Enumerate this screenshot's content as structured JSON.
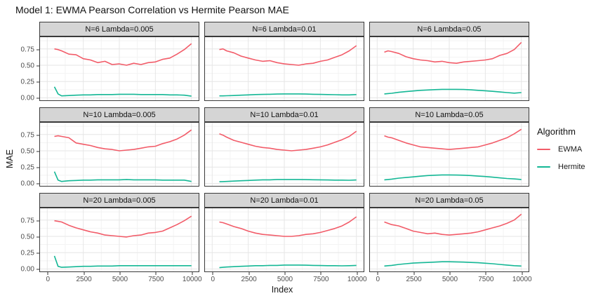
{
  "title": "Model 1: EWMA Pearson Correlation vs Hermite Pearson MAE",
  "x_axis": {
    "label": "Index",
    "ticks": [
      0,
      2500,
      5000,
      7500,
      10000
    ],
    "tick_labels": [
      "0",
      "2500",
      "5000",
      "7500",
      "10000"
    ]
  },
  "y_axis": {
    "label": "MAE",
    "ticks": [
      {
        "label": "0.75",
        "value": 0.75
      },
      {
        "label": "0.50",
        "value": 0.5
      },
      {
        "label": "0.25",
        "value": 0.25
      },
      {
        "label": "0.00",
        "value": 0.0
      }
    ]
  },
  "legend": {
    "title": "Algorithm",
    "items": [
      {
        "label": "EWMA",
        "color": "#f25c69"
      },
      {
        "label": "Hermite",
        "color": "#14b795"
      }
    ]
  },
  "style": {
    "strip_bg": "#d5d5d5",
    "panel_border": "#3a3a3a",
    "grid_major": "#e6e6e6",
    "grid_minor": "#f3f3f3"
  },
  "chart_data": {
    "type": "line",
    "title": "Model 1: EWMA Pearson Correlation vs Hermite Pearson MAE",
    "xlabel": "Index",
    "ylabel": "MAE",
    "xlim": [
      0,
      10000
    ],
    "ylim": [
      0,
      0.93
    ],
    "grid": true,
    "legend_position": "right",
    "x": [
      500,
      750,
      1000,
      1500,
      2000,
      2500,
      3000,
      3500,
      4000,
      4500,
      5000,
      5500,
      6000,
      6500,
      7000,
      7500,
      8000,
      8500,
      9000,
      9500,
      10000
    ],
    "minor_x": [
      1250,
      3750,
      6250,
      8750
    ],
    "minor_y": [
      0.125,
      0.375,
      0.625,
      0.875
    ],
    "facets": [
      {
        "label": "N=6 Lambda=0.005",
        "series": [
          {
            "name": "EWMA",
            "values": [
              0.75,
              0.74,
              0.72,
              0.67,
              0.66,
              0.6,
              0.58,
              0.54,
              0.56,
              0.51,
              0.52,
              0.5,
              0.53,
              0.51,
              0.54,
              0.55,
              0.59,
              0.61,
              0.67,
              0.74,
              0.83
            ]
          },
          {
            "name": "Hermite",
            "values": [
              0.17,
              0.06,
              0.03,
              0.035,
              0.04,
              0.045,
              0.045,
              0.05,
              0.05,
              0.05,
              0.055,
              0.055,
              0.055,
              0.05,
              0.05,
              0.05,
              0.05,
              0.045,
              0.045,
              0.04,
              0.025
            ]
          }
        ]
      },
      {
        "label": "N=6 Lambda=0.01",
        "series": [
          {
            "name": "EWMA",
            "values": [
              0.74,
              0.75,
              0.72,
              0.69,
              0.64,
              0.61,
              0.58,
              0.56,
              0.57,
              0.54,
              0.52,
              0.51,
              0.5,
              0.52,
              0.53,
              0.56,
              0.58,
              0.62,
              0.66,
              0.72,
              0.8
            ]
          },
          {
            "name": "Hermite",
            "values": [
              0.03,
              0.03,
              0.032,
              0.035,
              0.04,
              0.045,
              0.05,
              0.052,
              0.055,
              0.058,
              0.06,
              0.06,
              0.06,
              0.058,
              0.055,
              0.052,
              0.05,
              0.048,
              0.045,
              0.045,
              0.05
            ]
          }
        ]
      },
      {
        "label": "N=6 Lambda=0.05",
        "series": [
          {
            "name": "EWMA",
            "values": [
              0.7,
              0.72,
              0.71,
              0.68,
              0.63,
              0.6,
              0.58,
              0.57,
              0.55,
              0.56,
              0.54,
              0.53,
              0.55,
              0.56,
              0.57,
              0.58,
              0.6,
              0.65,
              0.68,
              0.74,
              0.85
            ]
          },
          {
            "name": "Hermite",
            "values": [
              0.06,
              0.065,
              0.07,
              0.085,
              0.095,
              0.105,
              0.115,
              0.12,
              0.125,
              0.13,
              0.13,
              0.13,
              0.128,
              0.122,
              0.115,
              0.108,
              0.1,
              0.09,
              0.08,
              0.072,
              0.08
            ]
          }
        ]
      },
      {
        "label": "N=10 Lambda=0.005",
        "series": [
          {
            "name": "EWMA",
            "values": [
              0.72,
              0.73,
              0.72,
              0.7,
              0.62,
              0.6,
              0.58,
              0.55,
              0.53,
              0.52,
              0.5,
              0.51,
              0.52,
              0.54,
              0.56,
              0.57,
              0.61,
              0.64,
              0.68,
              0.74,
              0.82
            ]
          },
          {
            "name": "Hermite",
            "values": [
              0.18,
              0.05,
              0.03,
              0.04,
              0.045,
              0.05,
              0.05,
              0.055,
              0.055,
              0.055,
              0.055,
              0.06,
              0.055,
              0.055,
              0.055,
              0.055,
              0.05,
              0.05,
              0.05,
              0.05,
              0.03
            ]
          }
        ]
      },
      {
        "label": "N=10 Lambda=0.01",
        "series": [
          {
            "name": "EWMA",
            "values": [
              0.76,
              0.74,
              0.71,
              0.66,
              0.63,
              0.6,
              0.57,
              0.55,
              0.54,
              0.52,
              0.51,
              0.5,
              0.51,
              0.52,
              0.54,
              0.56,
              0.59,
              0.63,
              0.67,
              0.72,
              0.8
            ]
          },
          {
            "name": "Hermite",
            "values": [
              0.025,
              0.028,
              0.03,
              0.035,
              0.04,
              0.045,
              0.05,
              0.055,
              0.055,
              0.06,
              0.06,
              0.06,
              0.06,
              0.058,
              0.056,
              0.054,
              0.052,
              0.05,
              0.05,
              0.048,
              0.052
            ]
          }
        ]
      },
      {
        "label": "N=10 Lambda=0.05",
        "series": [
          {
            "name": "EWMA",
            "values": [
              0.73,
              0.71,
              0.7,
              0.66,
              0.62,
              0.59,
              0.56,
              0.55,
              0.54,
              0.53,
              0.52,
              0.53,
              0.54,
              0.55,
              0.56,
              0.59,
              0.62,
              0.66,
              0.7,
              0.76,
              0.83
            ]
          },
          {
            "name": "Hermite",
            "values": [
              0.055,
              0.06,
              0.065,
              0.08,
              0.09,
              0.1,
              0.11,
              0.12,
              0.125,
              0.13,
              0.13,
              0.128,
              0.125,
              0.12,
              0.112,
              0.105,
              0.095,
              0.085,
              0.075,
              0.068,
              0.06
            ]
          }
        ]
      },
      {
        "label": "N=20 Lambda=0.005",
        "series": [
          {
            "name": "EWMA",
            "values": [
              0.74,
              0.73,
              0.72,
              0.67,
              0.63,
              0.6,
              0.57,
              0.55,
              0.52,
              0.51,
              0.5,
              0.49,
              0.51,
              0.52,
              0.55,
              0.56,
              0.58,
              0.63,
              0.68,
              0.74,
              0.81
            ]
          },
          {
            "name": "Hermite",
            "values": [
              0.2,
              0.04,
              0.025,
              0.03,
              0.035,
              0.04,
              0.04,
              0.045,
              0.045,
              0.045,
              0.05,
              0.05,
              0.05,
              0.05,
              0.05,
              0.05,
              0.05,
              0.05,
              0.05,
              0.05,
              0.05
            ]
          }
        ]
      },
      {
        "label": "N=20 Lambda=0.01",
        "series": [
          {
            "name": "EWMA",
            "values": [
              0.72,
              0.71,
              0.69,
              0.65,
              0.62,
              0.58,
              0.55,
              0.53,
              0.52,
              0.51,
              0.5,
              0.5,
              0.51,
              0.53,
              0.54,
              0.56,
              0.59,
              0.62,
              0.66,
              0.72,
              0.8
            ]
          },
          {
            "name": "Hermite",
            "values": [
              0.02,
              0.025,
              0.03,
              0.035,
              0.04,
              0.045,
              0.05,
              0.05,
              0.055,
              0.055,
              0.06,
              0.06,
              0.06,
              0.058,
              0.055,
              0.052,
              0.05,
              0.05,
              0.048,
              0.05,
              0.055
            ]
          }
        ]
      },
      {
        "label": "N=20 Lambda=0.05",
        "series": [
          {
            "name": "EWMA",
            "values": [
              0.72,
              0.7,
              0.68,
              0.66,
              0.62,
              0.58,
              0.56,
              0.54,
              0.55,
              0.53,
              0.52,
              0.53,
              0.54,
              0.55,
              0.57,
              0.6,
              0.63,
              0.66,
              0.7,
              0.75,
              0.84
            ]
          },
          {
            "name": "Hermite",
            "values": [
              0.045,
              0.05,
              0.055,
              0.07,
              0.08,
              0.09,
              0.095,
              0.1,
              0.105,
              0.11,
              0.11,
              0.108,
              0.105,
              0.1,
              0.095,
              0.088,
              0.08,
              0.07,
              0.06,
              0.05,
              0.045
            ]
          }
        ]
      }
    ]
  }
}
